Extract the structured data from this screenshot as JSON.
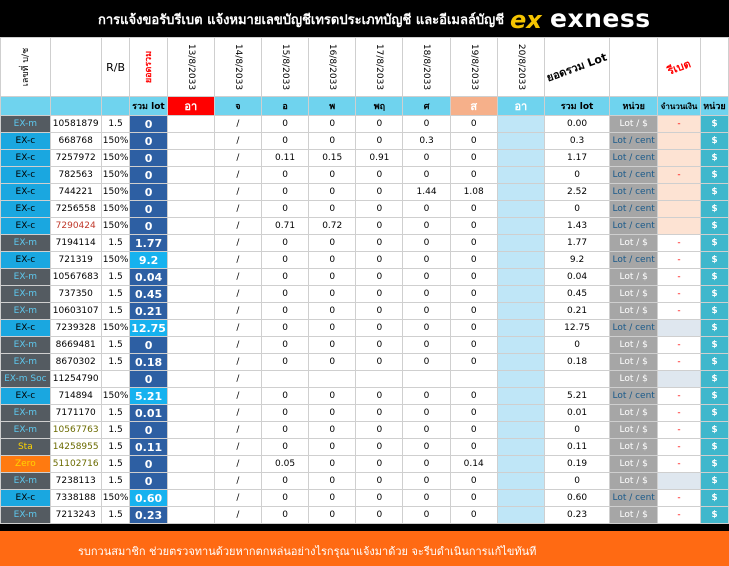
{
  "header": {
    "title": "การแจ้งขอรับรีเบต  แจ้งหมายเลขบัญชีเทรดประเภทบัญชี  และอีเมลล์บัญชี",
    "logo_text": "exness",
    "logo_mark": "ex"
  },
  "columns": {
    "account_no": "เลขที่ บ/ช",
    "rb": "R/B",
    "total_label": "ยอดรวม",
    "dates": [
      "13/8/2033",
      "14/8/2033",
      "15/8/2033",
      "16/8/2033",
      "17/8/2033",
      "18/8/2033",
      "19/8/2033",
      "20/8/2033"
    ],
    "sum_lot": "ยอดรวม Lot",
    "rebate": "รีเบต"
  },
  "subheader": {
    "total_lot": "รวม lot",
    "days": [
      "อา",
      "จ",
      "อ",
      "พ",
      "พฤ",
      "ศ",
      "ส",
      "อา"
    ],
    "sum_lot": "รวม lot",
    "unit": "หน่วย",
    "amount": "จำนวนเงิน",
    "unit2": "หน่วย"
  },
  "rows": [
    {
      "type": "EX-m",
      "acct": "10581879",
      "rb": "1.5",
      "total": "0",
      "d": [
        "",
        "/",
        "0",
        "0",
        "0",
        "0",
        "0",
        ""
      ],
      "sum": "0.00",
      "unit": "Lot / $",
      "amt": "-",
      "cur": "$"
    },
    {
      "type": "EX-c",
      "acct": "668768",
      "rb": "150%",
      "total": "0",
      "d": [
        "",
        "/",
        "0",
        "0",
        "0",
        "0.3",
        "0",
        ""
      ],
      "sum": "0.3",
      "unit": "Lot / cent",
      "amt": "",
      "cur": "$"
    },
    {
      "type": "EX-c",
      "acct": "7257972",
      "rb": "150%",
      "total": "0",
      "d": [
        "",
        "/",
        "0.11",
        "0.15",
        "0.91",
        "0",
        "0",
        ""
      ],
      "sum": "1.17",
      "unit": "Lot / cent",
      "amt": "",
      "cur": "$"
    },
    {
      "type": "EX-c",
      "acct": "782563",
      "rb": "150%",
      "total": "0",
      "d": [
        "",
        "/",
        "0",
        "0",
        "0",
        "0",
        "0",
        ""
      ],
      "sum": "0",
      "unit": "Lot / cent",
      "amt": "-",
      "cur": "$"
    },
    {
      "type": "EX-c",
      "acct": "744221",
      "rb": "150%",
      "total": "0",
      "d": [
        "",
        "/",
        "0",
        "0",
        "0",
        "1.44",
        "1.08",
        ""
      ],
      "sum": "2.52",
      "unit": "Lot / cent",
      "amt": "",
      "cur": "$"
    },
    {
      "type": "EX-c",
      "acct": "7256558",
      "rb": "150%",
      "total": "0",
      "d": [
        "",
        "/",
        "0",
        "0",
        "0",
        "0",
        "0",
        ""
      ],
      "sum": "0",
      "unit": "Lot / cent",
      "amt": "",
      "cur": "$"
    },
    {
      "type": "EX-c",
      "acct": "7290424",
      "rb": "150%",
      "total": "0",
      "d": [
        "",
        "/",
        "0.71",
        "0.72",
        "0",
        "0",
        "0",
        ""
      ],
      "sum": "1.43",
      "unit": "Lot / cent",
      "amt": "",
      "cur": "$"
    },
    {
      "type": "EX-m",
      "acct": "7194114",
      "rb": "1.5",
      "total": "1.77",
      "d": [
        "",
        "/",
        "0",
        "0",
        "0",
        "0",
        "0",
        ""
      ],
      "sum": "1.77",
      "unit": "Lot / $",
      "amt": "-",
      "cur": "$"
    },
    {
      "type": "EX-c",
      "acct": "721319",
      "rb": "150%",
      "total": "9.2",
      "d": [
        "",
        "/",
        "0",
        "0",
        "0",
        "0",
        "0",
        ""
      ],
      "sum": "9.2",
      "unit": "Lot / cent",
      "amt": "-",
      "cur": "$"
    },
    {
      "type": "EX-m",
      "acct": "10567683",
      "rb": "1.5",
      "total": "0.04",
      "d": [
        "",
        "/",
        "0",
        "0",
        "0",
        "0",
        "0",
        ""
      ],
      "sum": "0.04",
      "unit": "Lot / $",
      "amt": "-",
      "cur": "$"
    },
    {
      "type": "EX-m",
      "acct": "737350",
      "rb": "1.5",
      "total": "0.45",
      "d": [
        "",
        "/",
        "0",
        "0",
        "0",
        "0",
        "0",
        ""
      ],
      "sum": "0.45",
      "unit": "Lot / $",
      "amt": "-",
      "cur": "$"
    },
    {
      "type": "EX-m",
      "acct": "10603107",
      "rb": "1.5",
      "total": "0.21",
      "d": [
        "",
        "/",
        "0",
        "0",
        "0",
        "0",
        "0",
        ""
      ],
      "sum": "0.21",
      "unit": "Lot / $",
      "amt": "-",
      "cur": "$"
    },
    {
      "type": "EX-c",
      "acct": "7239328",
      "rb": "150%",
      "total": "12.75",
      "d": [
        "",
        "/",
        "0",
        "0",
        "0",
        "0",
        "0",
        ""
      ],
      "sum": "12.75",
      "unit": "Lot / cent",
      "amt": "",
      "cur": "$"
    },
    {
      "type": "EX-m",
      "acct": "8669481",
      "rb": "1.5",
      "total": "0",
      "d": [
        "",
        "/",
        "0",
        "0",
        "0",
        "0",
        "0",
        ""
      ],
      "sum": "0",
      "unit": "Lot / $",
      "amt": "-",
      "cur": "$"
    },
    {
      "type": "EX-m",
      "acct": "8670302",
      "rb": "1.5",
      "total": "0.18",
      "d": [
        "",
        "/",
        "0",
        "0",
        "0",
        "0",
        "0",
        ""
      ],
      "sum": "0.18",
      "unit": "Lot / $",
      "amt": "-",
      "cur": "$"
    },
    {
      "type": "EX-m Soc",
      "acct": "11254790",
      "rb": "",
      "total": "0",
      "d": [
        "",
        "/",
        "",
        "",
        "",
        "",
        "",
        ""
      ],
      "sum": "",
      "unit": "Lot / $",
      "amt": "",
      "cur": "$"
    },
    {
      "type": "EX-c",
      "acct": "714894",
      "rb": "150%",
      "total": "5.21",
      "d": [
        "",
        "/",
        "0",
        "0",
        "0",
        "0",
        "0",
        ""
      ],
      "sum": "5.21",
      "unit": "Lot / cent",
      "amt": "-",
      "cur": "$"
    },
    {
      "type": "EX-m",
      "acct": "7171170",
      "rb": "1.5",
      "total": "0.01",
      "d": [
        "",
        "/",
        "0",
        "0",
        "0",
        "0",
        "0",
        ""
      ],
      "sum": "0.01",
      "unit": "Lot / $",
      "amt": "-",
      "cur": "$"
    },
    {
      "type": "EX-m",
      "acct": "10567763",
      "rb": "1.5",
      "total": "0",
      "d": [
        "",
        "/",
        "0",
        "0",
        "0",
        "0",
        "0",
        ""
      ],
      "sum": "0",
      "unit": "Lot / $",
      "amt": "-",
      "cur": "$"
    },
    {
      "type": "Sta",
      "acct": "14258955",
      "rb": "1.5",
      "total": "0.11",
      "d": [
        "",
        "/",
        "0",
        "0",
        "0",
        "0",
        "0",
        ""
      ],
      "sum": "0.11",
      "unit": "Lot / $",
      "amt": "-",
      "cur": "$"
    },
    {
      "type": "Zero",
      "acct": "51102716",
      "rb": "1.5",
      "total": "0",
      "d": [
        "",
        "/",
        "0.05",
        "0",
        "0",
        "0",
        "0.14",
        ""
      ],
      "sum": "0.19",
      "unit": "Lot / $",
      "amt": "-",
      "cur": "$"
    },
    {
      "type": "EX-m",
      "acct": "7238113",
      "rb": "1.5",
      "total": "0",
      "d": [
        "",
        "/",
        "0",
        "0",
        "0",
        "0",
        "0",
        ""
      ],
      "sum": "0",
      "unit": "Lot / $",
      "amt": "",
      "cur": "$"
    },
    {
      "type": "EX-c",
      "acct": "7338188",
      "rb": "150%",
      "total": "0.60",
      "d": [
        "",
        "/",
        "0",
        "0",
        "0",
        "0",
        "0",
        ""
      ],
      "sum": "0.60",
      "unit": "Lot / cent",
      "amt": "-",
      "cur": "$"
    },
    {
      "type": "EX-m",
      "acct": "7213243",
      "rb": "1.5",
      "total": "0.23",
      "d": [
        "",
        "/",
        "0",
        "0",
        "0",
        "0",
        "0",
        ""
      ],
      "sum": "0.23",
      "unit": "Lot / $",
      "amt": "-",
      "cur": "$"
    }
  ],
  "footer": {
    "text": "รบกวนสมาชิก ช่วยตรวจทานด้วยหากตกหล่นอย่างไรกรุณาแจ้งมาด้วย  จะรีบดำเนินการแก้ไขทันที"
  },
  "colors": {
    "type_blue": "#1aa7e0",
    "type_gray": "#545b61",
    "total_blue": "#2d5fa3",
    "total_cyan": "#16b2ef",
    "unit_gray": "#a6a6a6",
    "currency_teal": "#3fb7cc",
    "sunday_red": "#ff0000",
    "saturday_orange": "#f6b08a",
    "footer_orange": "#ff6a13"
  }
}
